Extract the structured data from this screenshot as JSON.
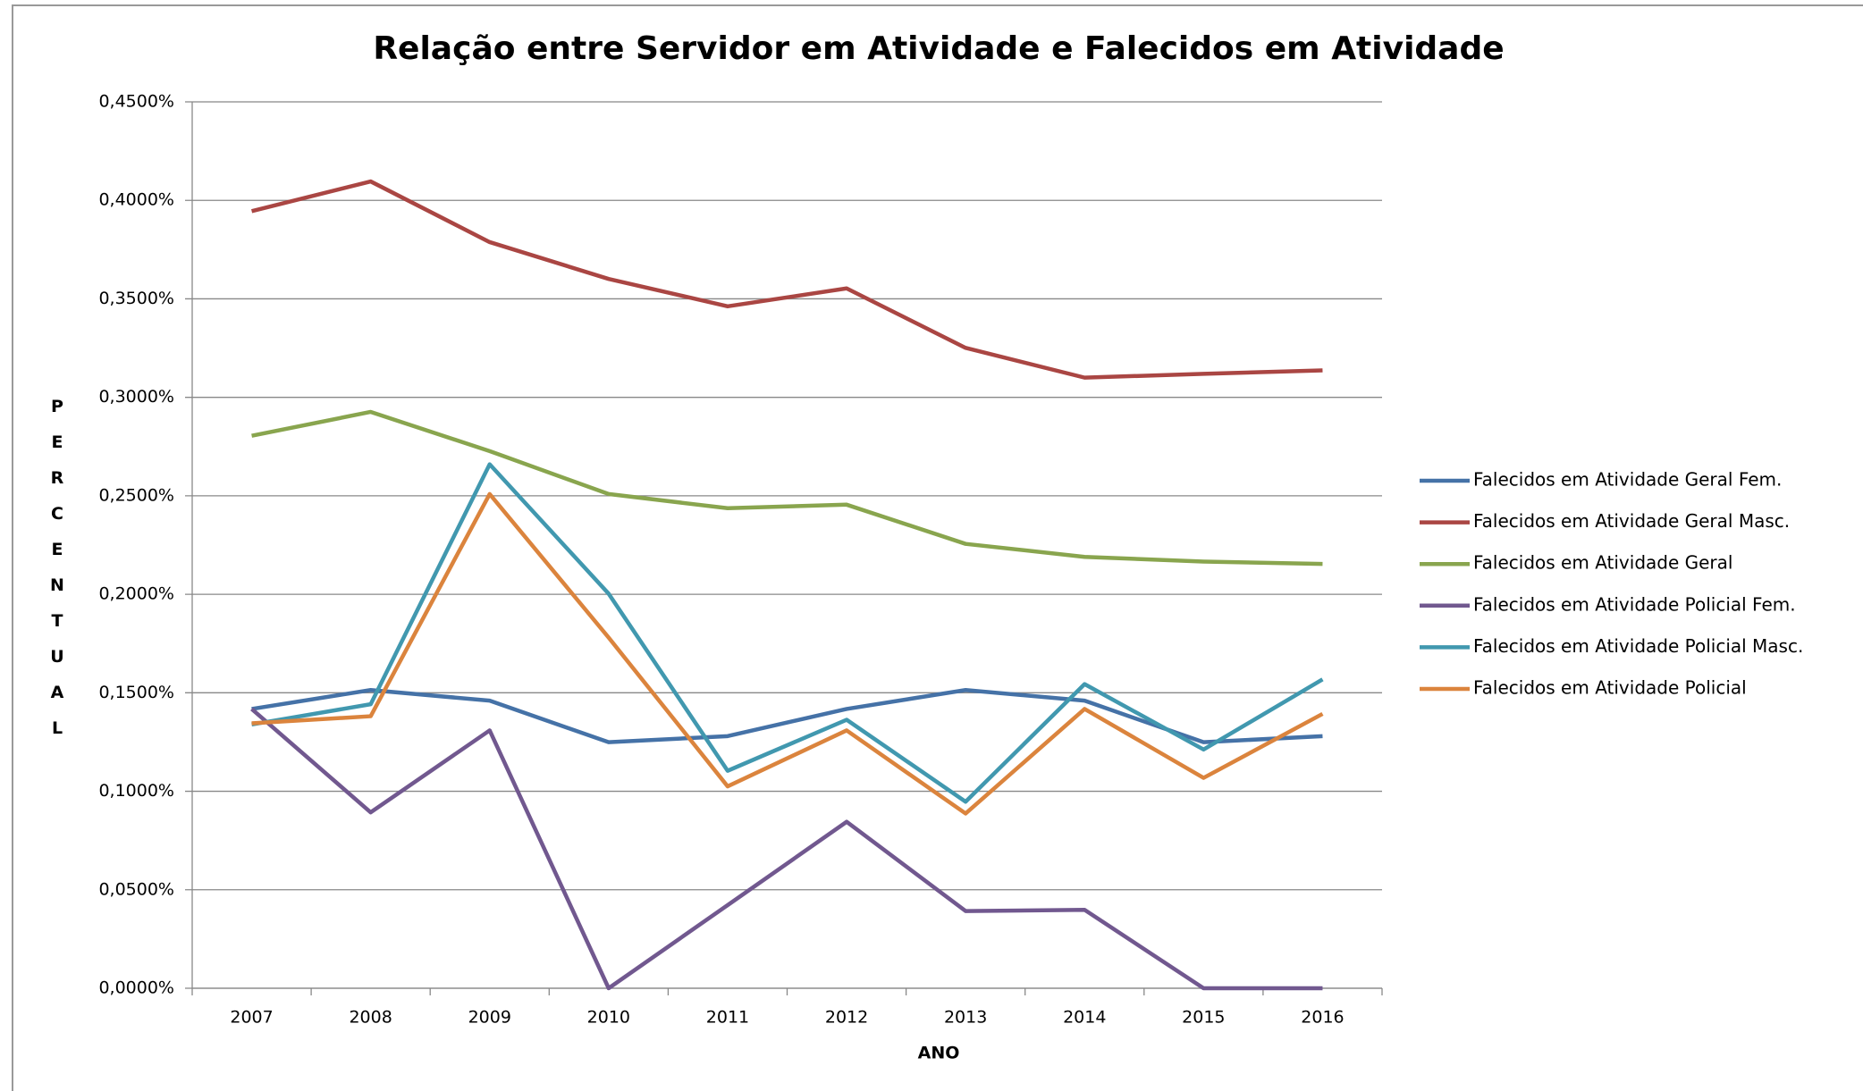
{
  "chart_data": {
    "type": "line",
    "title": "Relação entre Servidor em Atividade e Falecidos em Atividade",
    "x_label": "ANO",
    "y_label": "PERCENTUAL",
    "categories": [
      "2007",
      "2008",
      "2009",
      "2010",
      "2011",
      "2012",
      "2013",
      "2014",
      "2015",
      "2016"
    ],
    "series": [
      {
        "name": "Falecidos em Atividade Geral Fem.",
        "color": "#4572a7",
        "values": [
          0.1418,
          0.1514,
          0.146,
          0.1249,
          0.128,
          0.1418,
          0.1514,
          0.146,
          0.1249,
          0.128
        ]
      },
      {
        "name": "Falecidos em Atividade Geral Masc.",
        "color": "#aa4643",
        "values": [
          0.3945,
          0.4096,
          0.3788,
          0.3601,
          0.3462,
          0.3553,
          0.3251,
          0.31,
          0.3119,
          0.3137
        ]
      },
      {
        "name": "Falecidos em Atividade Geral",
        "color": "#89a54e",
        "values": [
          0.2805,
          0.2926,
          0.2727,
          0.2509,
          0.2437,
          0.2455,
          0.2256,
          0.219,
          0.2166,
          0.2154
        ]
      },
      {
        "name": "Falecidos em Atividade Policial Fem.",
        "color": "#71588f",
        "values": [
          0.1418,
          0.0893,
          0.1309,
          0,
          0.0422,
          0.0845,
          0.0392,
          0.0398,
          0,
          0
        ]
      },
      {
        "name": "Falecidos em Atividade Policial Masc.",
        "color": "#4198af",
        "values": [
          0.1339,
          0.1442,
          0.266,
          0.2003,
          0.1104,
          0.1363,
          0.0947,
          0.1544,
          0.1212,
          0.1568
        ]
      },
      {
        "name": "Falecidos em Atividade Policial",
        "color": "#db843d",
        "values": [
          0.1345,
          0.1381,
          0.2509,
          0.178,
          0.1025,
          0.1309,
          0.0887,
          0.1418,
          0.1068,
          0.1393
        ]
      }
    ],
    "ylim": [
      0,
      0.45
    ],
    "yticks": [
      {
        "value": 0,
        "label": "0,0000%"
      },
      {
        "value": 0.05,
        "label": "0,0500%"
      },
      {
        "value": 0.1,
        "label": "0,1000%"
      },
      {
        "value": 0.15,
        "label": "0,1500%"
      },
      {
        "value": 0.2,
        "label": "0,2000%"
      },
      {
        "value": 0.25,
        "label": "0,2500%"
      },
      {
        "value": 0.3,
        "label": "0,3000%"
      },
      {
        "value": 0.35,
        "label": "0,3500%"
      },
      {
        "value": 0.4,
        "label": "0,4000%"
      },
      {
        "value": 0.45,
        "label": "0,4500%"
      }
    ],
    "grid": true,
    "legend": "right"
  }
}
